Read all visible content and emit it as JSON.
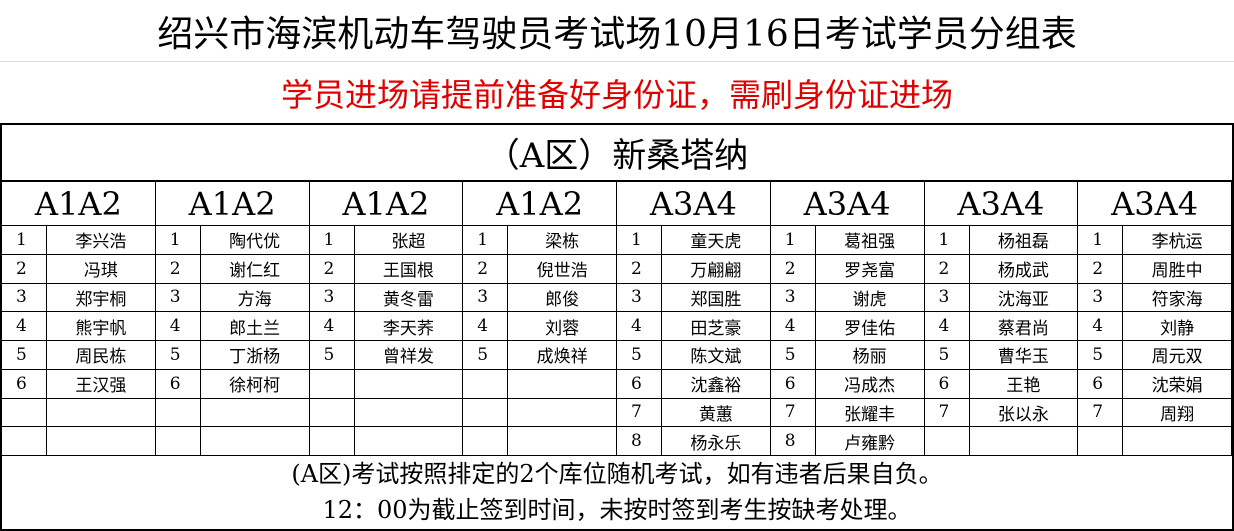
{
  "header": {
    "title": "绍兴市海滨机动车驾驶员考试场10月16日考试学员分组表",
    "notice": "学员进场请提前准备好身份证，需刷身份证进场"
  },
  "table": {
    "zone": "（A区）新桑塔纳",
    "groups": [
      {
        "header": "A1A2",
        "rows": [
          [
            "1",
            "李兴浩"
          ],
          [
            "2",
            "冯琪"
          ],
          [
            "3",
            "郑宇桐"
          ],
          [
            "4",
            "熊宇帆"
          ],
          [
            "5",
            "周民栋"
          ],
          [
            "6",
            "王汉强"
          ]
        ]
      },
      {
        "header": "A1A2",
        "rows": [
          [
            "1",
            "陶代优"
          ],
          [
            "2",
            "谢仁红"
          ],
          [
            "3",
            "方海"
          ],
          [
            "4",
            "郎土兰"
          ],
          [
            "5",
            "丁浙杨"
          ],
          [
            "6",
            "徐柯柯"
          ]
        ]
      },
      {
        "header": "A1A2",
        "rows": [
          [
            "1",
            "张超"
          ],
          [
            "2",
            "王国根"
          ],
          [
            "3",
            "黄冬雷"
          ],
          [
            "4",
            "李天荞"
          ],
          [
            "5",
            "曾祥发"
          ]
        ]
      },
      {
        "header": "A1A2",
        "rows": [
          [
            "1",
            "梁栋"
          ],
          [
            "2",
            "倪世浩"
          ],
          [
            "3",
            "郎俊"
          ],
          [
            "4",
            "刘蓉"
          ],
          [
            "5",
            "成焕祥"
          ]
        ]
      },
      {
        "header": "A3A4",
        "rows": [
          [
            "1",
            "童天虎"
          ],
          [
            "2",
            "万翩翩"
          ],
          [
            "3",
            "郑国胜"
          ],
          [
            "4",
            "田芝豪"
          ],
          [
            "5",
            "陈文斌"
          ],
          [
            "6",
            "沈鑫裕"
          ],
          [
            "7",
            "黄蕙"
          ],
          [
            "8",
            "杨永乐"
          ]
        ]
      },
      {
        "header": "A3A4",
        "rows": [
          [
            "1",
            "葛祖强"
          ],
          [
            "2",
            "罗尧富"
          ],
          [
            "3",
            "谢虎"
          ],
          [
            "4",
            "罗佳佑"
          ],
          [
            "5",
            "杨丽"
          ],
          [
            "6",
            "冯成杰"
          ],
          [
            "7",
            "张耀丰"
          ],
          [
            "8",
            "卢雍黔"
          ]
        ]
      },
      {
        "header": "A3A4",
        "rows": [
          [
            "1",
            "杨祖磊"
          ],
          [
            "2",
            "杨成武"
          ],
          [
            "3",
            "沈海亚"
          ],
          [
            "4",
            "蔡君尚"
          ],
          [
            "5",
            "曹华玉"
          ],
          [
            "6",
            "王艳"
          ],
          [
            "7",
            "张以永"
          ]
        ]
      },
      {
        "header": "A3A4",
        "rows": [
          [
            "1",
            "李杭运"
          ],
          [
            "2",
            "周胜中"
          ],
          [
            "3",
            "符家海"
          ],
          [
            "4",
            "刘静"
          ],
          [
            "5",
            "周元双"
          ],
          [
            "6",
            "沈荣娟"
          ],
          [
            "7",
            "周翔"
          ]
        ]
      }
    ]
  },
  "footer": {
    "lines": [
      "(A区)考试按照排定的2个库位随机考试，如有违者后果自负。",
      "12：00为截止签到时间，未按时签到考生按缺考处理。"
    ]
  }
}
